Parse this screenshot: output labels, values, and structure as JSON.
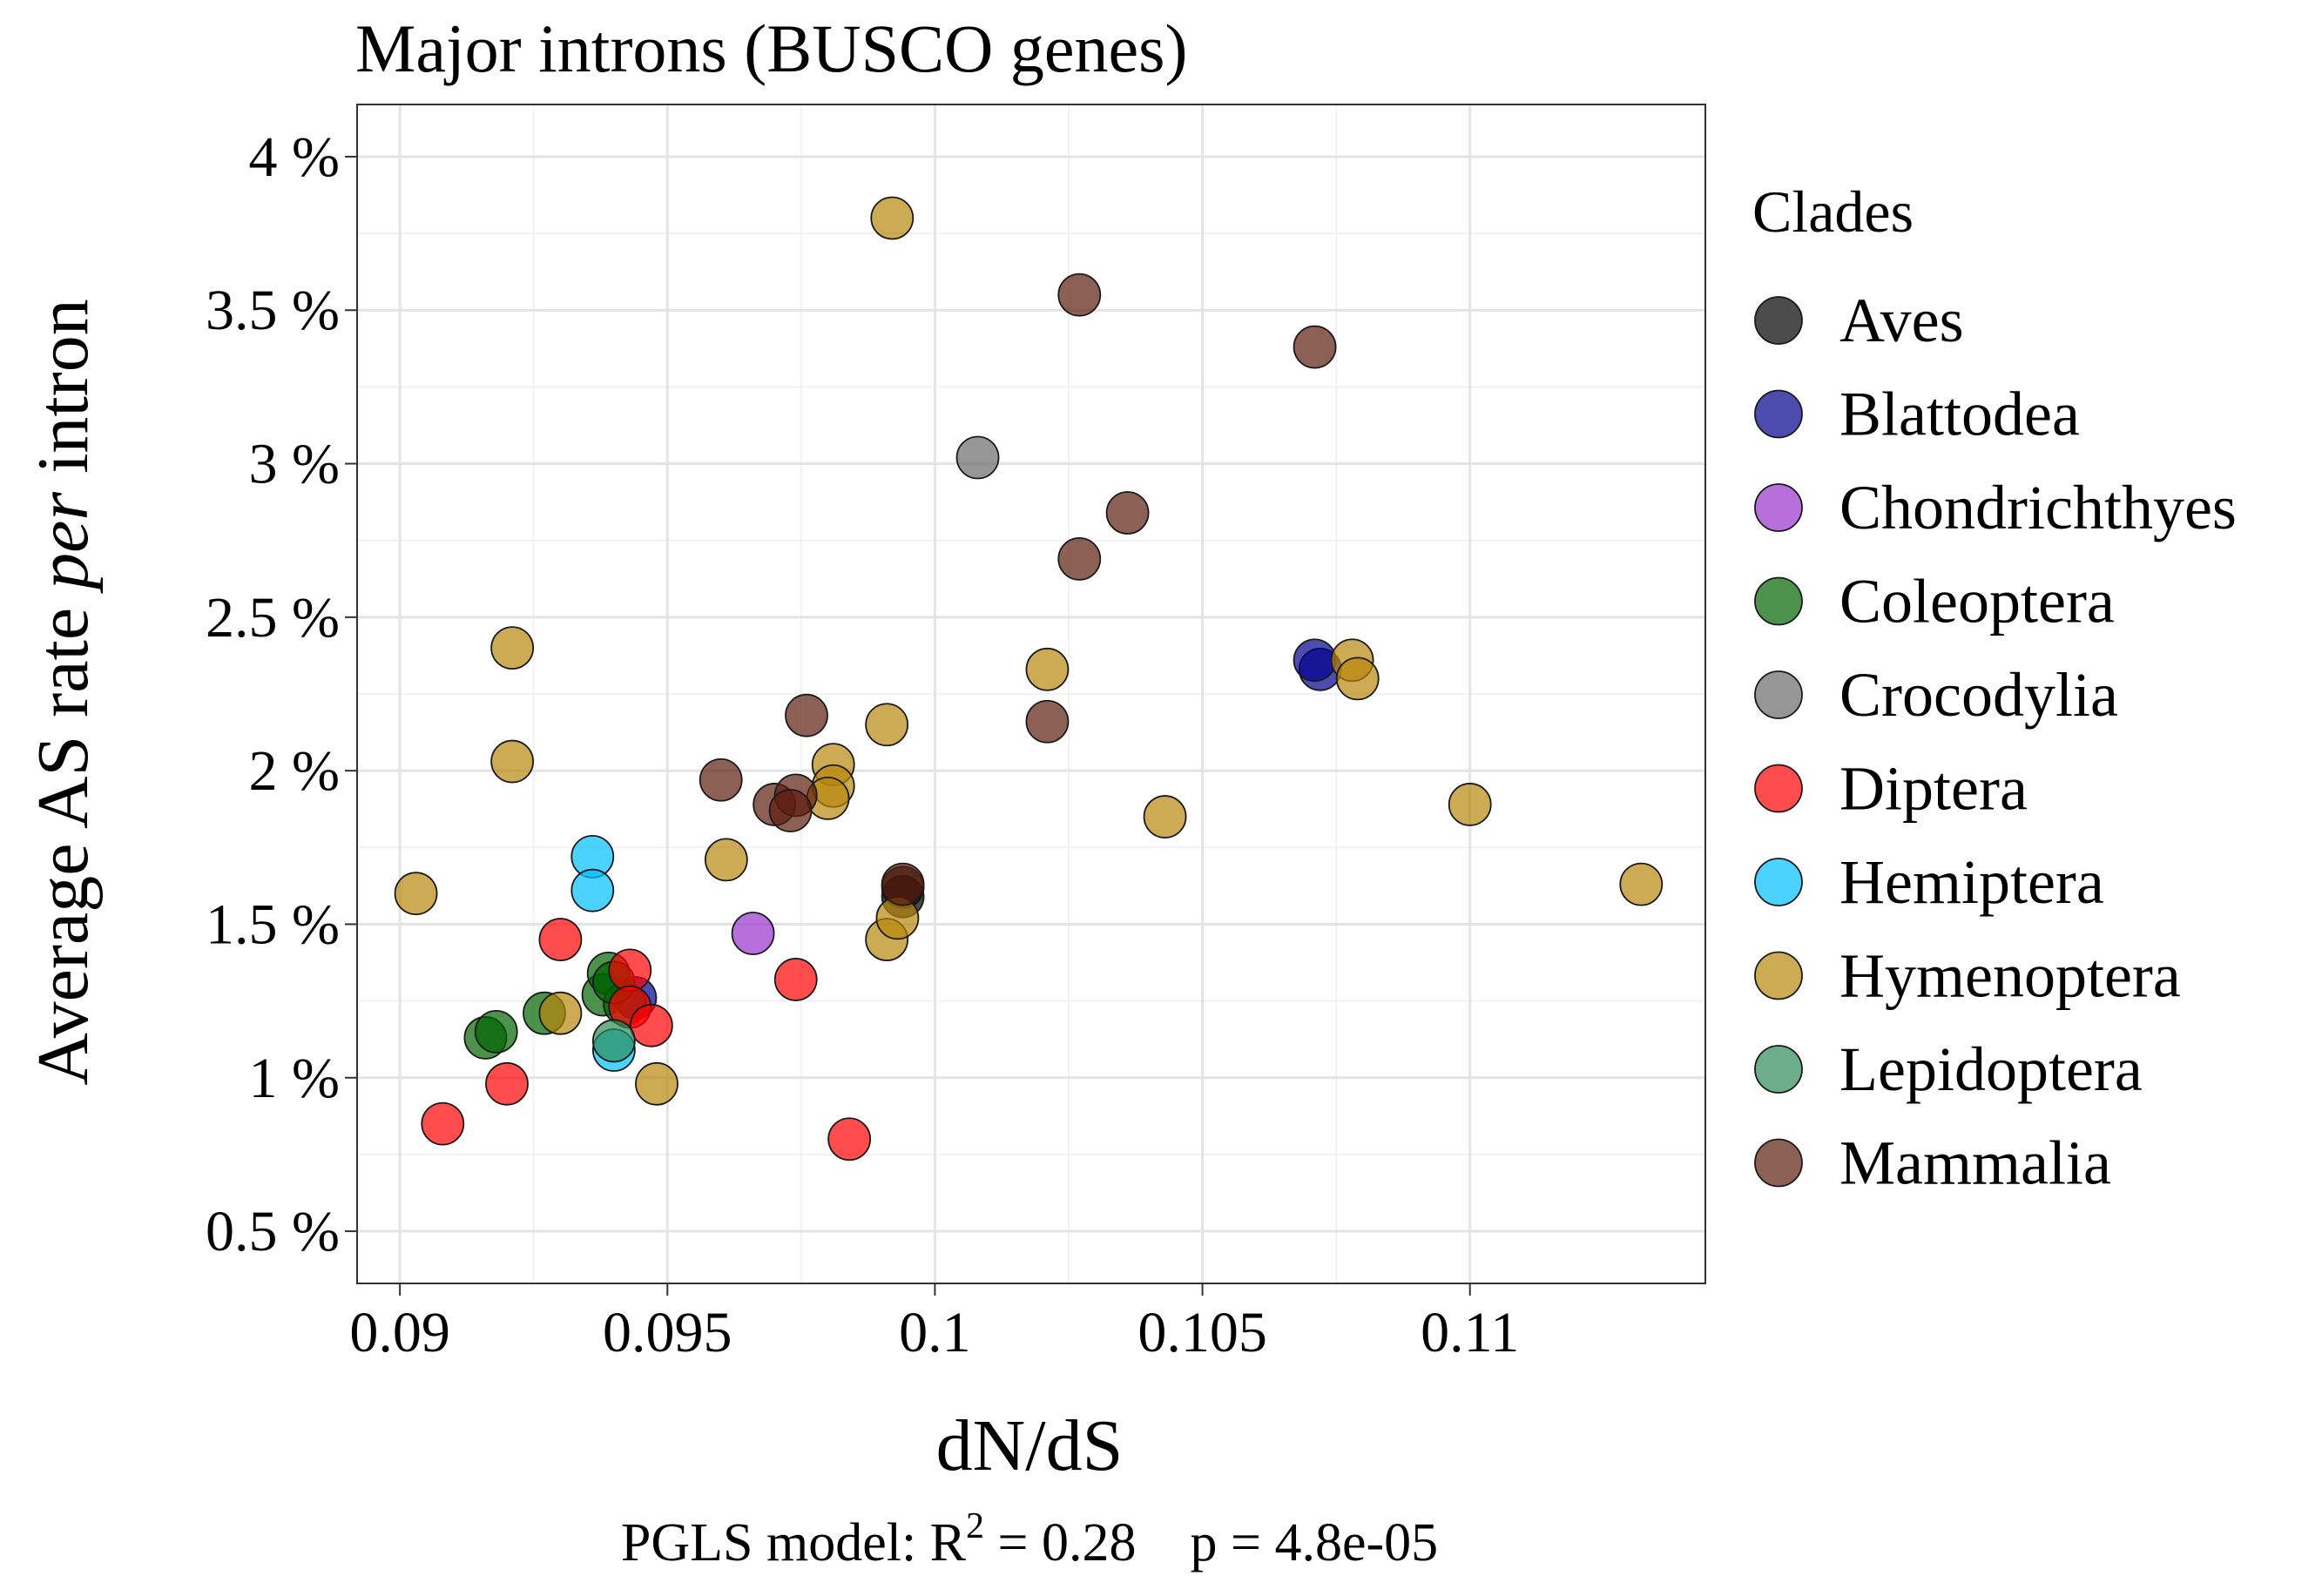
{
  "chart_data": {
    "type": "scatter",
    "title": "Major introns (BUSCO genes)",
    "xlabel": "dN/dS",
    "ylabel": {
      "pre": "Average AS rate ",
      "em": "per",
      "post": " intron"
    },
    "caption": {
      "pre": "PGLS model: R",
      "sup": "2",
      "post": " = 0.28    p = 4.8e-05"
    },
    "xlim": [
      0.0892,
      0.1144
    ],
    "ylim": [
      0.33,
      4.17
    ],
    "x_ticks": [
      0.09,
      0.095,
      0.1,
      0.105,
      0.11
    ],
    "x_tick_labels": [
      "0.09",
      "0.095",
      "0.1",
      "0.105",
      "0.11"
    ],
    "y_ticks": [
      0.5,
      1,
      1.5,
      2,
      2.5,
      3,
      3.5,
      4
    ],
    "y_tick_labels": [
      "0.5 %",
      "1 %",
      "1.5 %",
      "2 %",
      "2.5 %",
      "3 %",
      "3.5 %",
      "4 %"
    ],
    "grid": true,
    "legend": {
      "title": "Clades",
      "placement": "right"
    },
    "series": [
      {
        "name": "Aves",
        "color": "#000000",
        "points": [
          [
            0.0994,
            1.59
          ],
          [
            0.0994,
            1.62
          ]
        ]
      },
      {
        "name": "Blattodea",
        "color": "#00008b",
        "points": [
          [
            0.1072,
            2.33
          ],
          [
            0.1071,
            2.36
          ],
          [
            0.0944,
            1.26
          ]
        ]
      },
      {
        "name": "Chondrichthyes",
        "color": "#9932cc",
        "points": [
          [
            0.0966,
            1.47
          ]
        ]
      },
      {
        "name": "Coleoptera",
        "color": "#006400",
        "points": [
          [
            0.0916,
            1.13
          ],
          [
            0.0918,
            1.15
          ],
          [
            0.0927,
            1.21
          ],
          [
            0.0938,
            1.27
          ],
          [
            0.0939,
            1.34
          ],
          [
            0.0942,
            1.24
          ],
          [
            0.094,
            1.31
          ]
        ]
      },
      {
        "name": "Crocodylia",
        "color": "#696969",
        "points": [
          [
            0.1008,
            3.02
          ]
        ]
      },
      {
        "name": "Diptera",
        "color": "#ff0000",
        "points": [
          [
            0.0908,
            0.85
          ],
          [
            0.092,
            0.98
          ],
          [
            0.093,
            1.45
          ],
          [
            0.0943,
            1.35
          ],
          [
            0.0943,
            1.23
          ],
          [
            0.0947,
            1.17
          ],
          [
            0.0974,
            1.32
          ],
          [
            0.0984,
            0.8
          ]
        ]
      },
      {
        "name": "Hemiptera",
        "color": "#00bfff",
        "points": [
          [
            0.0936,
            1.72
          ],
          [
            0.0936,
            1.61
          ],
          [
            0.094,
            1.09
          ]
        ]
      },
      {
        "name": "Hymenoptera",
        "color": "#b8860b",
        "points": [
          [
            0.0992,
            3.8
          ],
          [
            0.0921,
            2.4
          ],
          [
            0.0921,
            2.03
          ],
          [
            0.0903,
            1.6
          ],
          [
            0.093,
            1.21
          ],
          [
            0.0948,
            0.98
          ],
          [
            0.0961,
            1.71
          ],
          [
            0.0981,
            2.02
          ],
          [
            0.0981,
            1.95
          ],
          [
            0.098,
            1.91
          ],
          [
            0.0991,
            2.15
          ],
          [
            0.0991,
            1.45
          ],
          [
            0.0993,
            1.52
          ],
          [
            0.1021,
            2.33
          ],
          [
            0.1043,
            1.85
          ],
          [
            0.1078,
            2.36
          ],
          [
            0.1079,
            2.3
          ],
          [
            0.11,
            1.89
          ],
          [
            0.1132,
            1.63
          ]
        ]
      },
      {
        "name": "Lepidoptera",
        "color": "#2e8b57",
        "points": [
          [
            0.094,
            1.12
          ]
        ]
      },
      {
        "name": "Mammalia",
        "color": "#5c1d0e",
        "points": [
          [
            0.1027,
            3.55
          ],
          [
            0.1071,
            3.38
          ],
          [
            0.1036,
            2.84
          ],
          [
            0.1027,
            2.69
          ],
          [
            0.0976,
            2.18
          ],
          [
            0.1021,
            2.16
          ],
          [
            0.096,
            1.97
          ],
          [
            0.097,
            1.89
          ],
          [
            0.0974,
            1.92
          ],
          [
            0.0973,
            1.87
          ],
          [
            0.0994,
            1.63
          ]
        ]
      }
    ]
  }
}
